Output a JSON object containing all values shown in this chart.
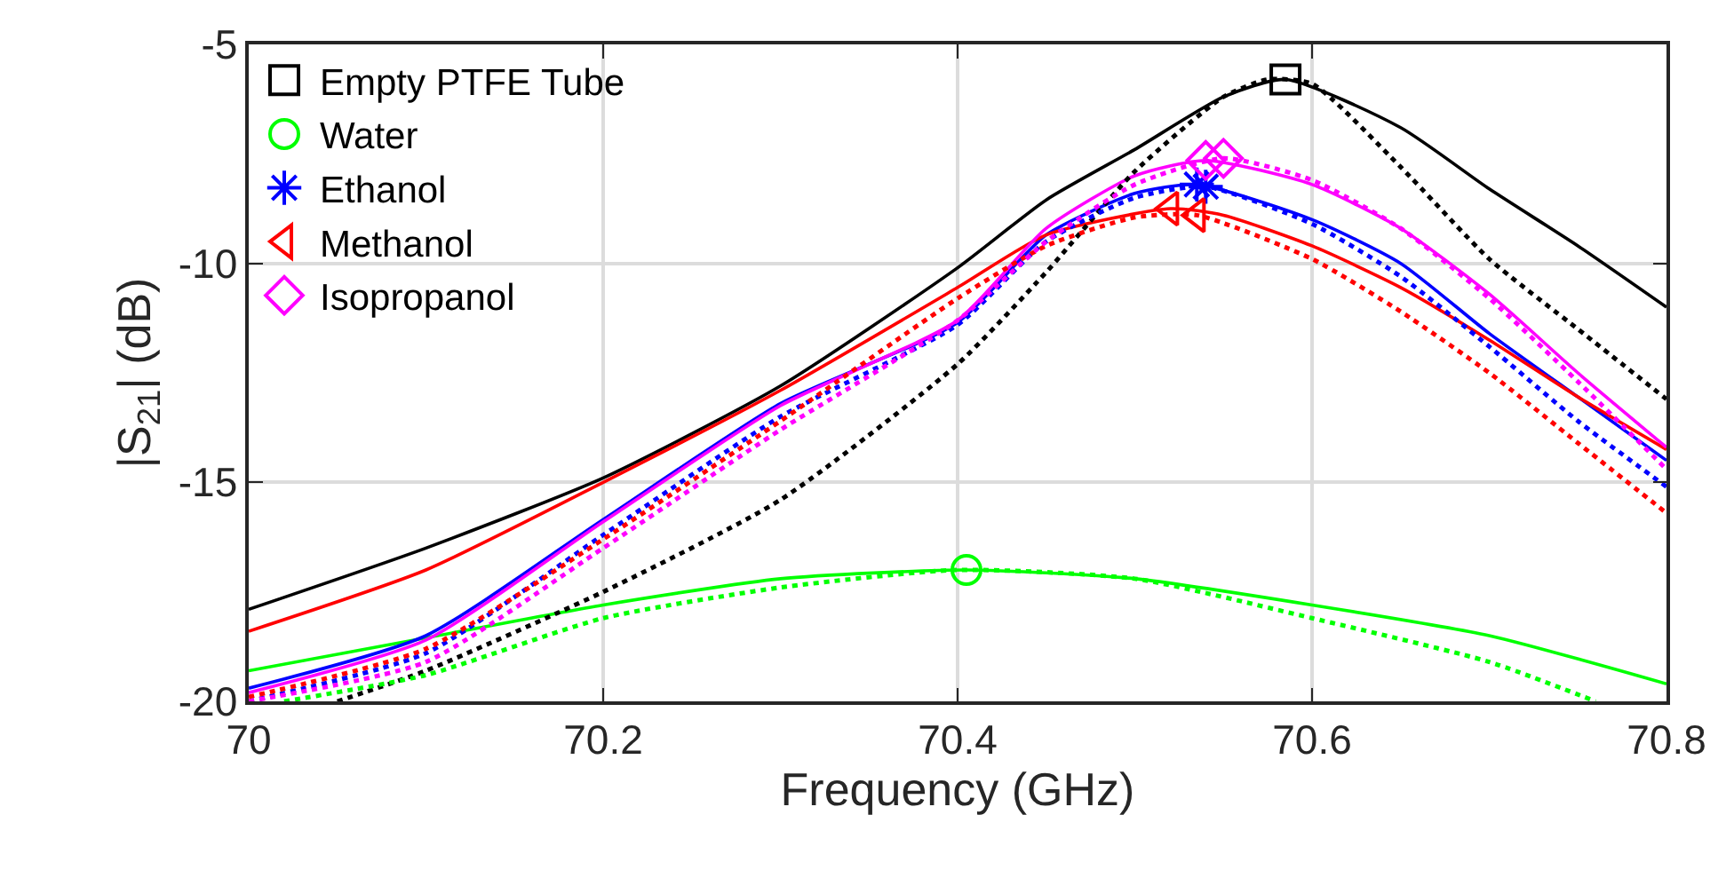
{
  "chart_data": {
    "type": "line",
    "xlabel": "Frequency (GHz)",
    "ylabel": "|S$_{21}$| (dB)",
    "xlim": [
      70,
      70.8
    ],
    "xticks": [
      70,
      70.2,
      70.4,
      70.6,
      70.8
    ],
    "ylim": [
      -20,
      -5
    ],
    "yticks": [
      -20,
      -15,
      -10,
      -5
    ],
    "grid": true,
    "legend": "top left",
    "series": [
      {
        "name": "Empty PTFE Tube",
        "type": "scatter",
        "color": "#000000",
        "marker": "square",
        "x": [
          70.585
        ],
        "values": [
          -5.8
        ]
      },
      {
        "name": "Water",
        "type": "scatter",
        "color": "#00ff00",
        "marker": "circle",
        "x": [
          70.405
        ],
        "values": [
          -17.0
        ]
      },
      {
        "name": "Ethanol",
        "type": "scatter",
        "color": "#0000ff",
        "marker": "cross",
        "x": [
          70.535,
          70.54
        ],
        "values": [
          -8.2,
          -8.25
        ]
      },
      {
        "name": "Methanol",
        "type": "scatter",
        "color": "#ff0000",
        "marker": "triangle",
        "x": [
          70.52,
          70.535
        ],
        "values": [
          -8.75,
          -8.9
        ]
      },
      {
        "name": "Isopropanol",
        "type": "scatter",
        "color": "#ff00ff",
        "marker": "diamond",
        "x": [
          70.54,
          70.55
        ],
        "values": [
          -7.65,
          -7.6
        ]
      },
      {
        "color": "#000000",
        "line_style": "solid",
        "x": [
          70,
          70.1,
          70.2,
          70.3,
          70.4,
          70.45,
          70.5,
          70.55,
          70.585,
          70.65,
          70.7,
          70.75,
          70.8
        ],
        "values": [
          -17.9,
          -16.5,
          -14.9,
          -12.8,
          -10.1,
          -8.55,
          -7.4,
          -6.2,
          -5.8,
          -6.9,
          -8.3,
          -9.6,
          -11.0
        ]
      },
      {
        "color": "#00ff00",
        "line_style": "solid",
        "x": [
          70,
          70.1,
          70.2,
          70.3,
          70.405,
          70.5,
          70.6,
          70.7,
          70.8
        ],
        "values": [
          -19.3,
          -18.55,
          -17.8,
          -17.2,
          -17.0,
          -17.2,
          -17.8,
          -18.5,
          -19.6
        ]
      },
      {
        "color": "#0000ff",
        "line_style": "solid",
        "x": [
          70,
          70.1,
          70.2,
          70.3,
          70.4,
          70.45,
          70.5,
          70.535,
          70.6,
          70.65,
          70.7,
          70.75,
          70.8
        ],
        "values": [
          -19.7,
          -18.5,
          -15.85,
          -13.2,
          -11.35,
          -9.35,
          -8.4,
          -8.2,
          -9.0,
          -10.0,
          -11.6,
          -13.05,
          -14.5
        ]
      },
      {
        "color": "#ff0000",
        "line_style": "solid",
        "x": [
          70,
          70.1,
          70.2,
          70.3,
          70.4,
          70.45,
          70.52,
          70.55,
          70.6,
          70.65,
          70.7,
          70.75,
          70.8
        ],
        "values": [
          -18.4,
          -17.0,
          -15.0,
          -12.9,
          -10.55,
          -9.35,
          -8.75,
          -8.9,
          -9.6,
          -10.55,
          -11.75,
          -13.05,
          -14.25
        ]
      },
      {
        "color": "#ff00ff",
        "line_style": "solid",
        "x": [
          70,
          70.1,
          70.2,
          70.3,
          70.4,
          70.45,
          70.5,
          70.54,
          70.6,
          70.65,
          70.7,
          70.75,
          70.8
        ],
        "values": [
          -19.8,
          -18.6,
          -15.9,
          -13.25,
          -11.3,
          -9.2,
          -8.0,
          -7.65,
          -8.2,
          -9.2,
          -10.7,
          -12.5,
          -14.2
        ]
      },
      {
        "color": "#000000",
        "line_style": "dotted",
        "x": [
          70.05,
          70.1,
          70.2,
          70.3,
          70.4,
          70.45,
          70.5,
          70.55,
          70.575,
          70.6,
          70.65,
          70.7,
          70.75,
          70.8
        ],
        "values": [
          -20,
          -19.3,
          -17.5,
          -15.4,
          -12.3,
          -10.2,
          -7.9,
          -6.2,
          -5.8,
          -5.9,
          -7.8,
          -9.9,
          -11.5,
          -13.1
        ]
      },
      {
        "color": "#00ff00",
        "line_style": "dotted",
        "x": [
          70.02,
          70.1,
          70.2,
          70.3,
          70.4,
          70.5,
          70.6,
          70.7,
          70.76
        ],
        "values": [
          -20,
          -19.4,
          -18.1,
          -17.4,
          -17.0,
          -17.2,
          -18.1,
          -19.1,
          -20
        ]
      },
      {
        "color": "#0000ff",
        "line_style": "dotted",
        "x": [
          70,
          70.1,
          70.2,
          70.3,
          70.4,
          70.45,
          70.5,
          70.54,
          70.6,
          70.65,
          70.7,
          70.75,
          70.8
        ],
        "values": [
          -20,
          -18.9,
          -16.2,
          -13.5,
          -11.4,
          -9.5,
          -8.5,
          -8.25,
          -9.1,
          -10.3,
          -11.9,
          -13.6,
          -15.1
        ]
      },
      {
        "color": "#ff0000",
        "line_style": "dotted",
        "x": [
          70,
          70.1,
          70.2,
          70.3,
          70.4,
          70.45,
          70.5,
          70.535,
          70.6,
          70.65,
          70.7,
          70.75,
          70.8
        ],
        "values": [
          -19.9,
          -18.8,
          -16.3,
          -13.6,
          -10.8,
          -9.6,
          -8.95,
          -8.9,
          -9.9,
          -11.1,
          -12.5,
          -14.1,
          -15.7
        ]
      },
      {
        "color": "#ff00ff",
        "line_style": "dotted",
        "x": [
          70,
          70.1,
          70.2,
          70.3,
          70.4,
          70.45,
          70.5,
          70.55,
          70.6,
          70.65,
          70.7,
          70.75,
          70.8
        ],
        "values": [
          -20,
          -19.1,
          -16.5,
          -13.8,
          -11.3,
          -9.5,
          -8.2,
          -7.6,
          -8.1,
          -9.2,
          -10.8,
          -12.7,
          -14.7
        ]
      }
    ]
  }
}
